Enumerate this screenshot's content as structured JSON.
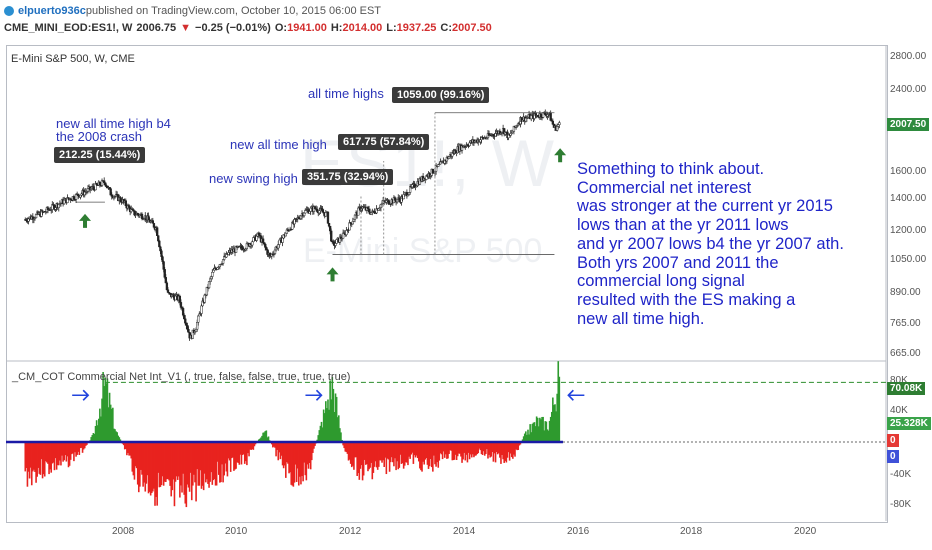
{
  "header": {
    "user": "elpuerto936c",
    "published": "published on TradingView.com, October 10, 2015 06:00 EST",
    "symbol": "CME_MINI_EOD:ES1!, W",
    "last": "2006.75",
    "change": "−0.25 (−0.01%)",
    "o_label": "O:",
    "o_val": "1941.00",
    "h_label": "H:",
    "h_val": "2014.00",
    "l_label": "L:",
    "l_val": "1937.25",
    "c_label": "C:",
    "c_val": "2007.50",
    "down_arrow": "▼"
  },
  "chart_title": "E-Mini S&P 500, W, CME",
  "watermark": {
    "line1": "ES1!, W",
    "line2": "E-Mini S&P 500"
  },
  "annotations": {
    "ath_b4_2008_line1": "new all time high b4",
    "ath_b4_2008_line2": "the 2008 crash",
    "tag_2008": "212.25 (15.44%)",
    "all_time_highs": "all time highs",
    "tag_ath": "1059.00 (99.16%)",
    "new_ath": "new all time high",
    "tag_new_ath": "617.75 (57.84%)",
    "new_swing_high": "new swing high",
    "tag_swing": "351.75 (32.94%)"
  },
  "note": [
    "Something to think about.",
    "Commercial net interest",
    "was stronger at the current yr 2015",
    "lows than at the yr 2011 lows",
    "and yr 2007 lows b4 the yr 2007 ath.",
    "Both yrs 2007 and 2011 the",
    "commercial long signal",
    "resulted with the ES making a",
    "new all time high."
  ],
  "indicator_title": "_CM_COT Commercial Net Int_V1 (, true, false, false, true, true, true)",
  "price_axis": {
    "ticks": [
      "2800.00",
      "2400.00",
      "1600.00",
      "1400.00",
      "1200.00",
      "1050.00",
      "890.00",
      "765.00",
      "665.00"
    ],
    "last_badge": "2007.50"
  },
  "indicator_axis": {
    "ticks": [
      "80K",
      "40K",
      "-40K",
      "-80K"
    ],
    "badge_top": "70.08K",
    "badge_mid": "25.328K",
    "badge_zero1": "0",
    "badge_zero2": "0"
  },
  "time_axis": [
    "2008",
    "2010",
    "2012",
    "2014",
    "2016",
    "2018",
    "2020"
  ],
  "colors": {
    "bull": "#2e7d32",
    "bear": "#e53935",
    "candle": "#222222",
    "annot": "#2c35b8",
    "pos_hist": "#2e9a2e",
    "neg_hist": "#e8231f",
    "zero_line": "#1a1aa6",
    "dashed": "#2f8f2f"
  },
  "chart_data": [
    {
      "type": "line",
      "title": "E-Mini S&P 500, W, CME",
      "x_unit": "year",
      "scale": "log",
      "ylim": [
        665,
        2800
      ],
      "x": [
        2006.3,
        2006.6,
        2007.0,
        2007.3,
        2007.5,
        2007.7,
        2007.8,
        2008.0,
        2008.2,
        2008.4,
        2008.6,
        2008.8,
        2009.0,
        2009.2,
        2009.3,
        2009.6,
        2009.9,
        2010.2,
        2010.4,
        2010.6,
        2010.9,
        2011.2,
        2011.4,
        2011.6,
        2011.7,
        2011.9,
        2012.2,
        2012.4,
        2012.6,
        2012.9,
        2013.2,
        2013.5,
        2013.9,
        2014.1,
        2014.4,
        2014.7,
        2014.8,
        2015.0,
        2015.3,
        2015.5,
        2015.6,
        2015.7
      ],
      "y": [
        1270,
        1310,
        1390,
        1440,
        1480,
        1520,
        1440,
        1390,
        1310,
        1290,
        1220,
        890,
        870,
        720,
        760,
        990,
        1090,
        1120,
        1180,
        1060,
        1200,
        1320,
        1340,
        1300,
        1120,
        1180,
        1350,
        1310,
        1380,
        1400,
        1520,
        1610,
        1780,
        1830,
        1880,
        1950,
        1880,
        2050,
        2090,
        2110,
        1960,
        2007
      ]
    },
    {
      "type": "bar",
      "title": "_CM_COT Commercial Net Int_V1 (, true, false, false, true, true, true)",
      "x_unit": "year",
      "ylim": [
        -100000,
        100000
      ],
      "x": [
        2006.3,
        2006.7,
        2007.0,
        2007.3,
        2007.5,
        2007.7,
        2007.9,
        2008.1,
        2008.3,
        2008.6,
        2008.9,
        2009.1,
        2009.3,
        2009.6,
        2009.9,
        2010.2,
        2010.5,
        2010.8,
        2011.0,
        2011.3,
        2011.5,
        2011.7,
        2011.9,
        2012.2,
        2012.5,
        2012.8,
        2013.1,
        2013.4,
        2013.7,
        2014.0,
        2014.3,
        2014.6,
        2014.9,
        2015.1,
        2015.3,
        2015.5,
        2015.7
      ],
      "values": [
        -40000,
        -30000,
        -25000,
        -10000,
        8000,
        70000,
        12000,
        -15000,
        -45000,
        -55000,
        -70000,
        -60000,
        -50000,
        -40000,
        -30000,
        -20000,
        15000,
        -25000,
        -45000,
        -30000,
        20000,
        70000,
        -10000,
        -35000,
        -30000,
        -25000,
        -20000,
        -30000,
        -15000,
        -20000,
        -10000,
        -20000,
        -15000,
        10000,
        25000,
        20000,
        80000
      ]
    }
  ]
}
